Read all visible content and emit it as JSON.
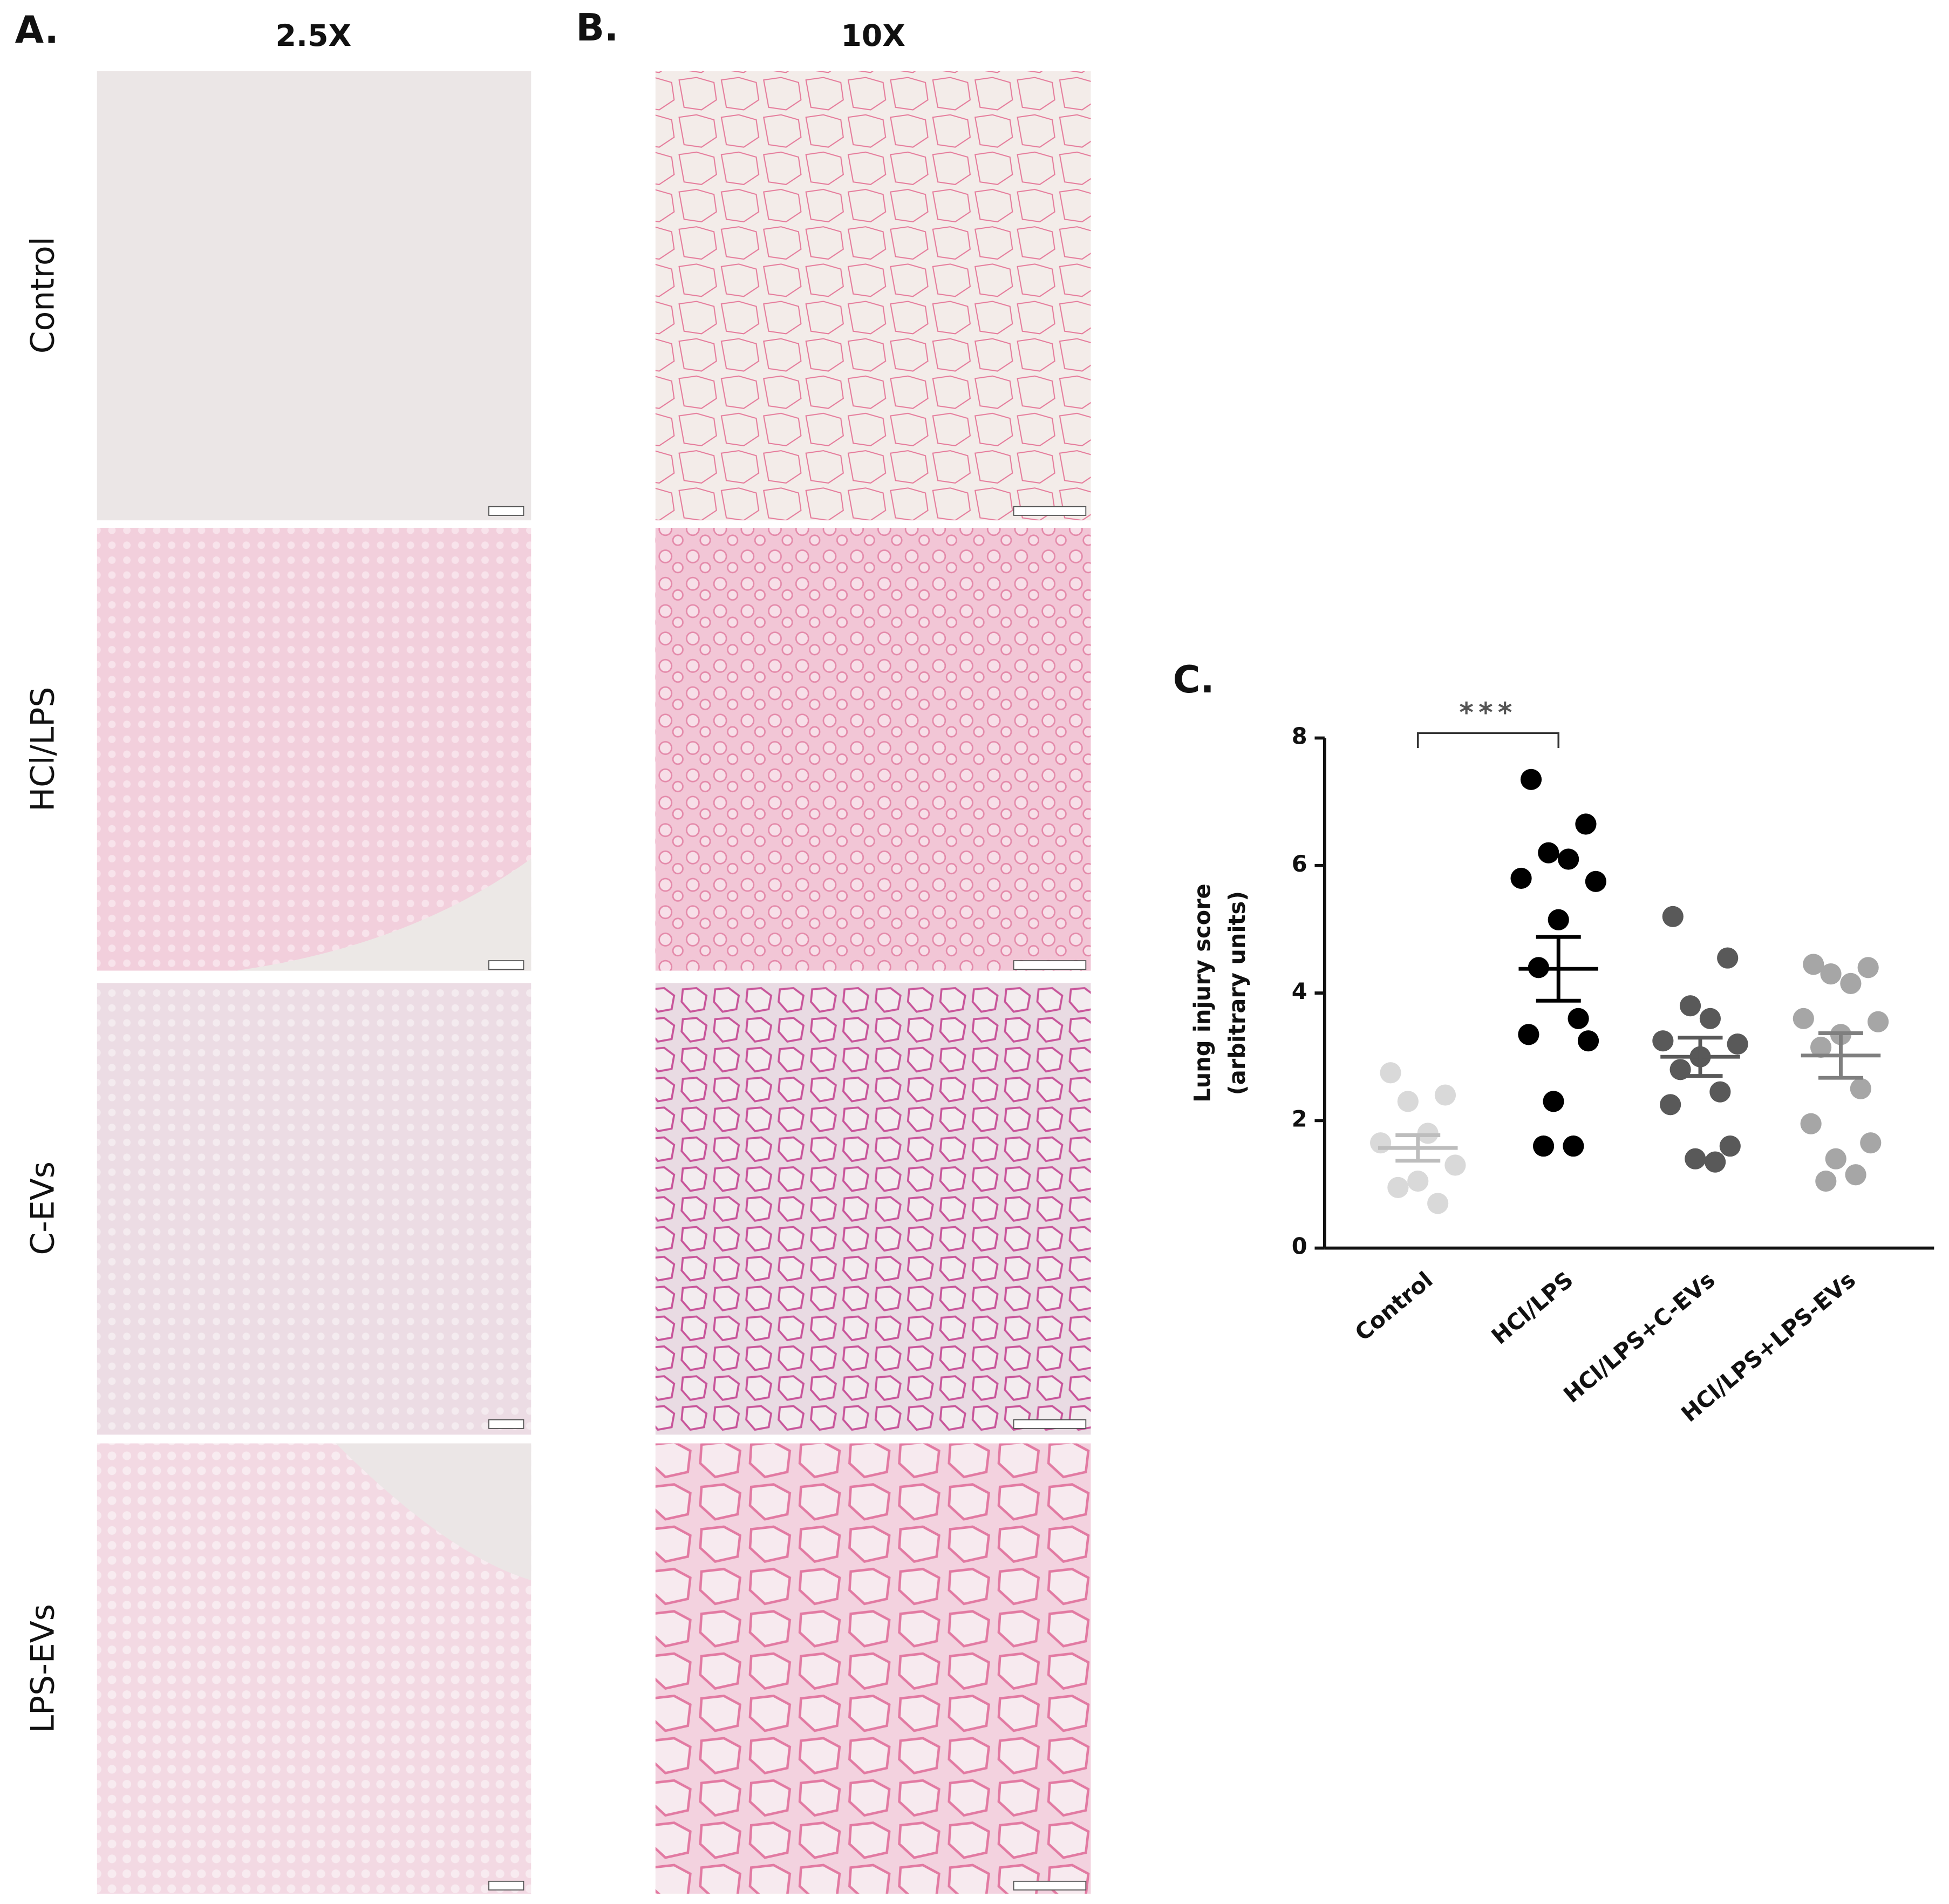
{
  "panels": {
    "a_label": "A.",
    "a_title": "2.5X",
    "b_label": "B.",
    "b_title": "10X",
    "rows": [
      "Control",
      "HCl/LPS",
      "C-EVs",
      "LPS-EVs"
    ]
  },
  "chart_data": {
    "type": "strip",
    "panel_label": "C.",
    "ylabel": [
      "Lung injury score",
      "(arbitrary units)"
    ],
    "categories": [
      "Control",
      "HCl/LPS",
      "HCl/LPS+C-EVs",
      "HCl/LPS+LPS-EVs"
    ],
    "ylim": [
      0,
      8
    ],
    "yticks": [
      0,
      2,
      4,
      6,
      8
    ],
    "series": [
      {
        "name": "Control",
        "color": "#d9d9d9",
        "values": [
          2.75,
          2.4,
          2.3,
          1.8,
          1.65,
          1.3,
          1.05,
          0.95,
          0.7
        ],
        "mean": 1.57,
        "sem": 0.2
      },
      {
        "name": "HCl/LPS",
        "color": "#000000",
        "values": [
          7.35,
          6.65,
          6.2,
          6.1,
          5.8,
          5.75,
          5.15,
          4.4,
          3.6,
          3.35,
          3.25,
          2.3,
          1.6,
          1.6
        ],
        "mean": 4.38,
        "sem": 0.5
      },
      {
        "name": "HCl/LPS+C-EVs",
        "color": "#595959",
        "values": [
          5.2,
          4.55,
          3.8,
          3.6,
          3.25,
          3.2,
          3.0,
          2.8,
          2.45,
          2.25,
          1.6,
          1.4,
          1.35
        ],
        "mean": 3.0,
        "sem": 0.3
      },
      {
        "name": "HCl/LPS+LPS-EVs",
        "color": "#a6a6a6",
        "values": [
          4.45,
          4.4,
          4.3,
          4.15,
          3.6,
          3.55,
          3.35,
          3.15,
          2.5,
          1.95,
          1.65,
          1.4,
          1.15,
          1.05
        ],
        "mean": 3.02,
        "sem": 0.35
      }
    ],
    "annotation": "***"
  }
}
